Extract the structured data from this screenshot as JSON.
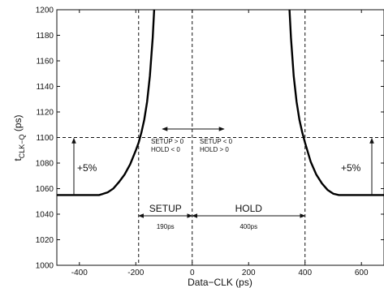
{
  "chart_data": {
    "type": "line",
    "title": "",
    "xlabel": "Data−CLK (ps)",
    "ylabel_main": "t",
    "ylabel_sub": "CLK−Q",
    "ylabel_unit": " (ps)",
    "xlim": [
      -480,
      680
    ],
    "ylim": [
      1000,
      1200
    ],
    "xticks": [
      -400,
      -200,
      0,
      200,
      400,
      600
    ],
    "yticks": [
      1000,
      1020,
      1040,
      1060,
      1080,
      1100,
      1120,
      1140,
      1160,
      1180,
      1200
    ],
    "grid": false,
    "series": [
      {
        "x": [
          -480,
          -440,
          -400,
          -360,
          -330,
          -300,
          -280,
          -260,
          -240,
          -220,
          -200,
          -190,
          -180,
          -170,
          -160,
          -150,
          -140,
          -135
        ],
        "y": [
          1055,
          1055,
          1055,
          1055,
          1055,
          1057,
          1060,
          1065,
          1071,
          1079,
          1090,
          1096,
          1104,
          1114,
          1128,
          1148,
          1178,
          1200
        ]
      },
      {
        "x": [
          345,
          350,
          360,
          370,
          380,
          390,
          400,
          420,
          440,
          460,
          480,
          500,
          520,
          540,
          580,
          620,
          680
        ],
        "y": [
          1200,
          1178,
          1148,
          1128,
          1114,
          1104,
          1096,
          1081,
          1071,
          1064,
          1059,
          1056,
          1055,
          1055,
          1055,
          1055,
          1055
        ]
      }
    ],
    "reference_lines": {
      "h_dashed_y": 1100,
      "v_dashed_x": [
        -190,
        0,
        400
      ]
    },
    "annotations": {
      "plus5_left": "+5%",
      "plus5_right": "+5%",
      "setup_label": "SETUP",
      "hold_label": "HOLD",
      "setup_width": "190ps",
      "hold_width": "400ps",
      "left_region_line1": "SETUP > 0",
      "left_region_line2": "HOLD < 0",
      "right_region_line1": "SETUP < 0",
      "right_region_line2": "HOLD > 0"
    }
  }
}
